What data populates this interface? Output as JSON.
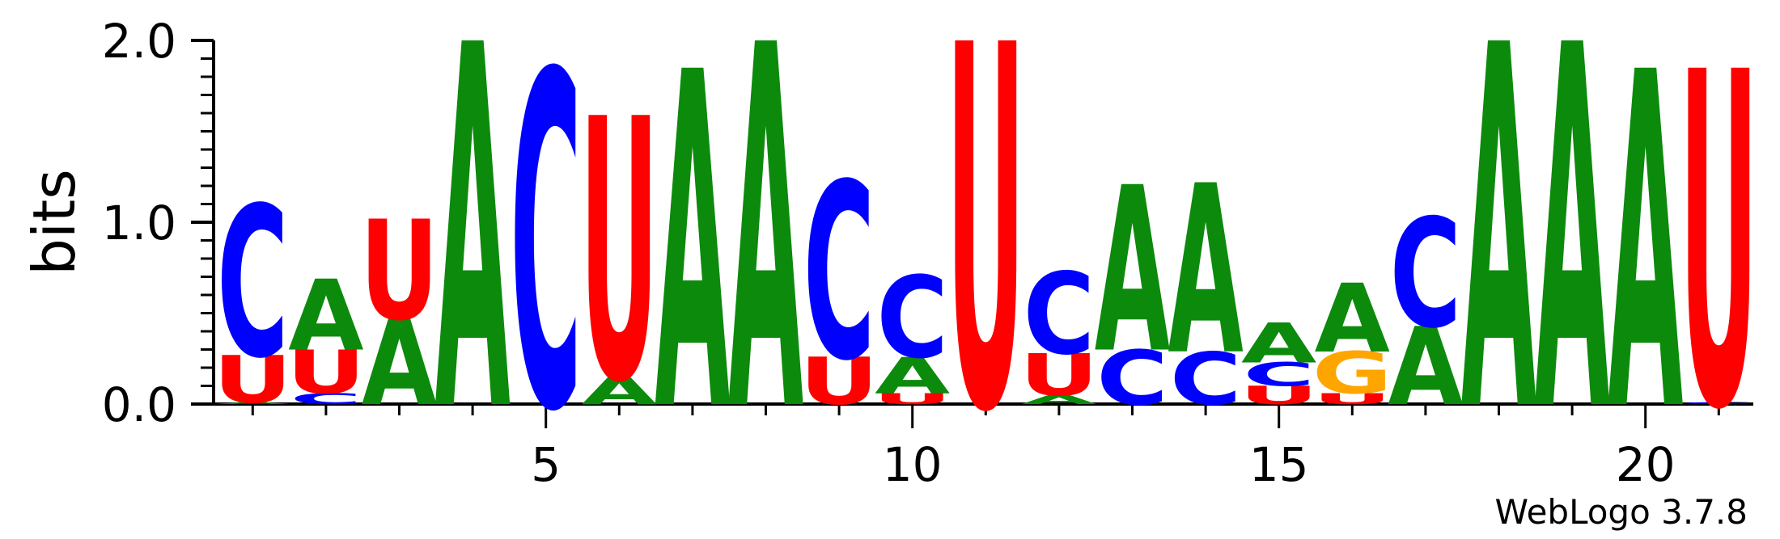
{
  "chart_data": {
    "type": "sequence-logo",
    "ylabel": "bits",
    "ylim": [
      0,
      2
    ],
    "y_ticks": [
      "0.0",
      "1.0",
      "2.0"
    ],
    "x_ticks": [
      "5",
      "10",
      "15",
      "20"
    ],
    "x_tick_values": [
      5,
      10,
      15,
      20
    ],
    "positions": [
      1,
      21
    ],
    "footer": "WebLogo 3.7.8",
    "colors": {
      "A": "#0c8a0c",
      "C": "#0000ff",
      "G": "#ffa500",
      "U": "#ff0000"
    },
    "columns": [
      {
        "pos": 1,
        "stack": [
          {
            "base": "A",
            "bits": 0.01
          },
          {
            "base": "U",
            "bits": 0.26
          },
          {
            "base": "C",
            "bits": 0.83
          }
        ]
      },
      {
        "pos": 2,
        "stack": [
          {
            "base": "C",
            "bits": 0.06
          },
          {
            "base": "U",
            "bits": 0.24
          },
          {
            "base": "A",
            "bits": 0.39
          }
        ]
      },
      {
        "pos": 3,
        "stack": [
          {
            "base": "A",
            "bits": 0.47
          },
          {
            "base": "U",
            "bits": 0.55
          }
        ]
      },
      {
        "pos": 4,
        "stack": [
          {
            "base": "A",
            "bits": 2.0
          }
        ]
      },
      {
        "pos": 5,
        "stack": [
          {
            "base": "C",
            "bits": 1.84
          }
        ]
      },
      {
        "pos": 6,
        "stack": [
          {
            "base": "A",
            "bits": 0.15
          },
          {
            "base": "U",
            "bits": 1.44
          }
        ]
      },
      {
        "pos": 7,
        "stack": [
          {
            "base": "A",
            "bits": 1.85
          }
        ]
      },
      {
        "pos": 8,
        "stack": [
          {
            "base": "A",
            "bits": 2.0
          }
        ]
      },
      {
        "pos": 9,
        "stack": [
          {
            "base": "U",
            "bits": 0.26
          },
          {
            "base": "C",
            "bits": 0.97
          }
        ]
      },
      {
        "pos": 10,
        "stack": [
          {
            "base": "U",
            "bits": 0.06
          },
          {
            "base": "A",
            "bits": 0.2
          },
          {
            "base": "C",
            "bits": 0.45
          }
        ]
      },
      {
        "pos": 11,
        "stack": [
          {
            "base": "U",
            "bits": 2.0
          }
        ]
      },
      {
        "pos": 12,
        "stack": [
          {
            "base": "A",
            "bits": 0.05
          },
          {
            "base": "U",
            "bits": 0.23
          },
          {
            "base": "C",
            "bits": 0.45
          }
        ]
      },
      {
        "pos": 13,
        "stack": [
          {
            "base": "C",
            "bits": 0.3
          },
          {
            "base": "A",
            "bits": 0.91
          }
        ]
      },
      {
        "pos": 14,
        "stack": [
          {
            "base": "C",
            "bits": 0.29
          },
          {
            "base": "A",
            "bits": 0.93
          }
        ]
      },
      {
        "pos": 15,
        "stack": [
          {
            "base": "U",
            "bits": 0.1
          },
          {
            "base": "C",
            "bits": 0.13
          },
          {
            "base": "A",
            "bits": 0.22
          }
        ]
      },
      {
        "pos": 16,
        "stack": [
          {
            "base": "U",
            "bits": 0.06
          },
          {
            "base": "G",
            "bits": 0.23
          },
          {
            "base": "A",
            "bits": 0.38
          }
        ]
      },
      {
        "pos": 17,
        "stack": [
          {
            "base": "A",
            "bits": 0.43
          },
          {
            "base": "C",
            "bits": 0.6
          }
        ]
      },
      {
        "pos": 18,
        "stack": [
          {
            "base": "A",
            "bits": 2.0
          }
        ]
      },
      {
        "pos": 19,
        "stack": [
          {
            "base": "A",
            "bits": 2.0
          }
        ]
      },
      {
        "pos": 20,
        "stack": [
          {
            "base": "A",
            "bits": 1.85
          }
        ]
      },
      {
        "pos": 21,
        "stack": [
          {
            "base": "C",
            "bits": 0.01
          },
          {
            "base": "U",
            "bits": 1.84
          }
        ]
      }
    ]
  }
}
